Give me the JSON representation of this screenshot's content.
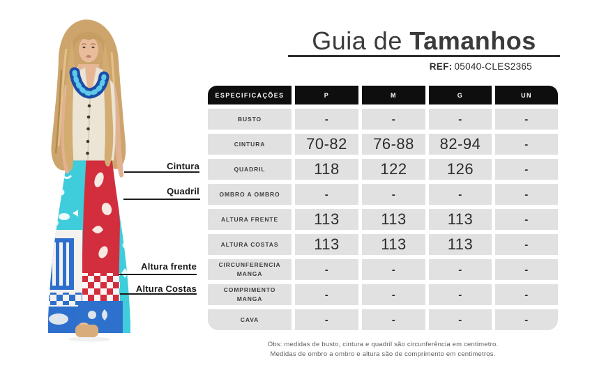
{
  "header": {
    "title_light": "Guia de ",
    "title_bold": "Tamanhos",
    "ref_label": "REF:",
    "ref_value": "05040-CLES2365"
  },
  "measures": [
    {
      "label": "Cintura"
    },
    {
      "label": "Quadril"
    },
    {
      "label": "Altura frente"
    },
    {
      "label": "Altura Costas"
    }
  ],
  "table": {
    "columns": [
      "ESPECIFICAÇÕES",
      "P",
      "M",
      "G",
      "UN"
    ],
    "rows": [
      {
        "label": "BUSTO",
        "values": [
          "-",
          "-",
          "-",
          "-"
        ]
      },
      {
        "label": "CINTURA",
        "values": [
          "70-82",
          "76-88",
          "82-94",
          "-"
        ]
      },
      {
        "label": "QUADRIL",
        "values": [
          "118",
          "122",
          "126",
          "-"
        ]
      },
      {
        "label": "OMBRO A OMBRO",
        "values": [
          "-",
          "-",
          "-",
          "-"
        ]
      },
      {
        "label": "ALTURA FRENTE",
        "values": [
          "113",
          "113",
          "113",
          "-"
        ]
      },
      {
        "label": "ALTURA COSTAS",
        "values": [
          "113",
          "113",
          "113",
          "-"
        ]
      },
      {
        "label": "CIRCUNFERENCIA MANGA",
        "values": [
          "-",
          "-",
          "-",
          "-"
        ]
      },
      {
        "label": "COMPRIMENTO MANGA",
        "values": [
          "-",
          "-",
          "-",
          "-"
        ]
      },
      {
        "label": "CAVA",
        "values": [
          "-",
          "-",
          "-",
          "-"
        ]
      }
    ]
  },
  "footnote": {
    "line1": "Obs: medidas de busto, cintura e quadril são circunferência em centimetro.",
    "line2": "Medidas de ombro a ombro e altura são de comprimento em centimetros."
  },
  "colors": {
    "header_cell_bg": "#0e0e0e",
    "data_cell_bg": "#e1e1e1",
    "title_text": "#3b3b3b",
    "callout_line": "#1c1c1c"
  }
}
